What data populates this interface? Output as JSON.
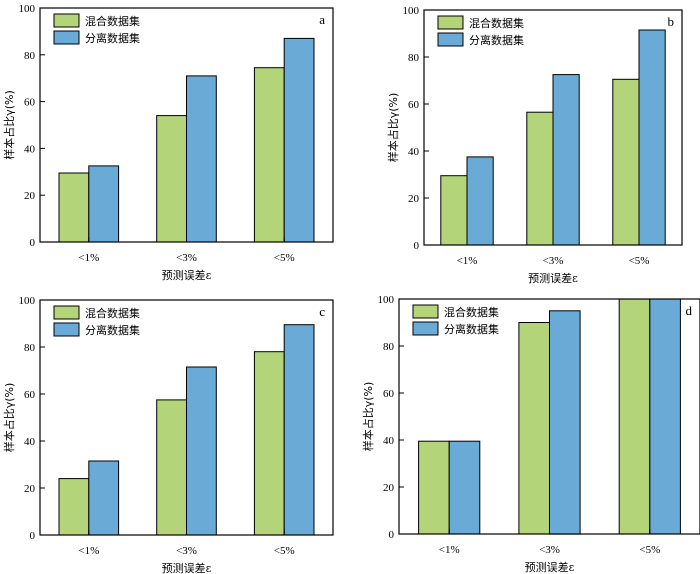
{
  "colors": {
    "mixed": "#b4d47a",
    "separate": "#6aaad6",
    "frame": "#000000"
  },
  "chart_data": [
    {
      "type": "bar",
      "panel_label": "a",
      "categories": [
        "<1%",
        "<3%",
        "<5%"
      ],
      "series": [
        {
          "name": "混合数据集",
          "values": [
            29.5,
            54,
            74.5
          ]
        },
        {
          "name": "分离数据集",
          "values": [
            32.5,
            71,
            87
          ]
        }
      ],
      "xlabel": "预测误差ε",
      "ylabel": "样本占比γ(%)",
      "ylim": [
        0,
        100
      ],
      "yticks": [
        0,
        20,
        40,
        60,
        80,
        100
      ],
      "legend": "top-left",
      "grid": false
    },
    {
      "type": "bar",
      "panel_label": "b",
      "categories": [
        "<1%",
        "<3%",
        "<5%"
      ],
      "series": [
        {
          "name": "混合数据集",
          "values": [
            29.5,
            56.5,
            70.5
          ]
        },
        {
          "name": "分离数据集",
          "values": [
            37.5,
            72.5,
            91.5
          ]
        }
      ],
      "xlabel": "预测误差ε",
      "ylabel": "样本占比γ(%)",
      "ylim": [
        0,
        100
      ],
      "yticks": [
        0,
        20,
        40,
        60,
        80,
        100
      ],
      "legend": "top-left",
      "grid": false
    },
    {
      "type": "bar",
      "panel_label": "c",
      "categories": [
        "<1%",
        "<3%",
        "<5%"
      ],
      "series": [
        {
          "name": "混合数据集",
          "values": [
            24,
            57.5,
            78
          ]
        },
        {
          "name": "分离数据集",
          "values": [
            31.5,
            71.5,
            89.5
          ]
        }
      ],
      "xlabel": "预测误差ε",
      "ylabel": "样本占比γ(%)",
      "ylim": [
        0,
        100
      ],
      "yticks": [
        0,
        20,
        40,
        60,
        80,
        100
      ],
      "legend": "top-left",
      "grid": false
    },
    {
      "type": "bar",
      "panel_label": "d",
      "categories": [
        "<1%",
        "<3%",
        "<5%"
      ],
      "series": [
        {
          "name": "混合数据集",
          "values": [
            39.5,
            90,
            100
          ]
        },
        {
          "name": "分离数据集",
          "values": [
            39.5,
            95,
            100
          ]
        }
      ],
      "xlabel": "预测误差ε",
      "ylabel": "样本占比γ(%)",
      "ylim": [
        0,
        100
      ],
      "yticks": [
        0,
        20,
        40,
        60,
        80,
        100
      ],
      "legend": "top-left",
      "grid": false
    }
  ]
}
